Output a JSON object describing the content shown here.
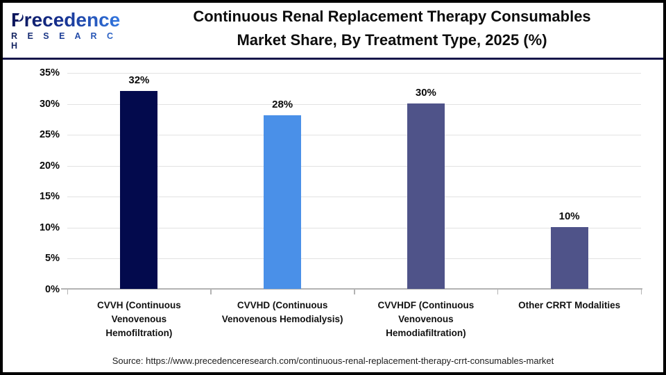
{
  "header": {
    "logo_line1": "Precedence",
    "logo_line2": "R E S E A R C H",
    "title_line1": "Continuous Renal Replacement Therapy Consumables",
    "title_line2": "Market Share, By Treatment Type, 2025 (%)"
  },
  "chart_data": {
    "type": "bar",
    "title": "Continuous Renal Replacement Therapy Consumables Market Share, By Treatment Type, 2025 (%)",
    "categories": [
      "CVVH (Continuous Venovenous Hemofiltration)",
      "CVVHD (Continuous Venovenous Hemodialysis)",
      "CVVHDF (Continuous Venovenous Hemodiafiltration)",
      "Other CRRT Modalities"
    ],
    "category_lines": [
      [
        "CVVH (Continuous",
        "Venovenous",
        "Hemofiltration)"
      ],
      [
        "CVVHD (Continuous",
        "Venovenous Hemodialysis)"
      ],
      [
        "CVVHDF (Continuous",
        "Venovenous",
        "Hemodiafiltration)"
      ],
      [
        "Other CRRT Modalities"
      ]
    ],
    "values": [
      32,
      28,
      30,
      10
    ],
    "value_labels": [
      "32%",
      "28%",
      "30%",
      "10%"
    ],
    "bar_colors": [
      "#030a4d",
      "#4a90e8",
      "#4f5389",
      "#4f5389"
    ],
    "y_ticks": [
      "35%",
      "30%",
      "25%",
      "20%",
      "15%",
      "10%",
      "5%",
      "0%"
    ],
    "ylim": [
      0,
      35
    ],
    "grid": true,
    "legend": false,
    "xlabel": "",
    "ylabel": ""
  },
  "footer": {
    "source": "Source: https://www.precedenceresearch.com/continuous-renal-replacement-therapy-crrt-consumables-market"
  },
  "colors": {
    "bar_navy": "#030a4d",
    "bar_blue": "#4a90e8",
    "bar_slate": "#4f5389",
    "divider_navy": "#16164a",
    "gridline": "#e2e2e2",
    "axis_gray": "#b3b3b3",
    "title_text": "#0d0d0d",
    "logo_dark": "#0c1559",
    "logo_blue": "#3377e0"
  }
}
